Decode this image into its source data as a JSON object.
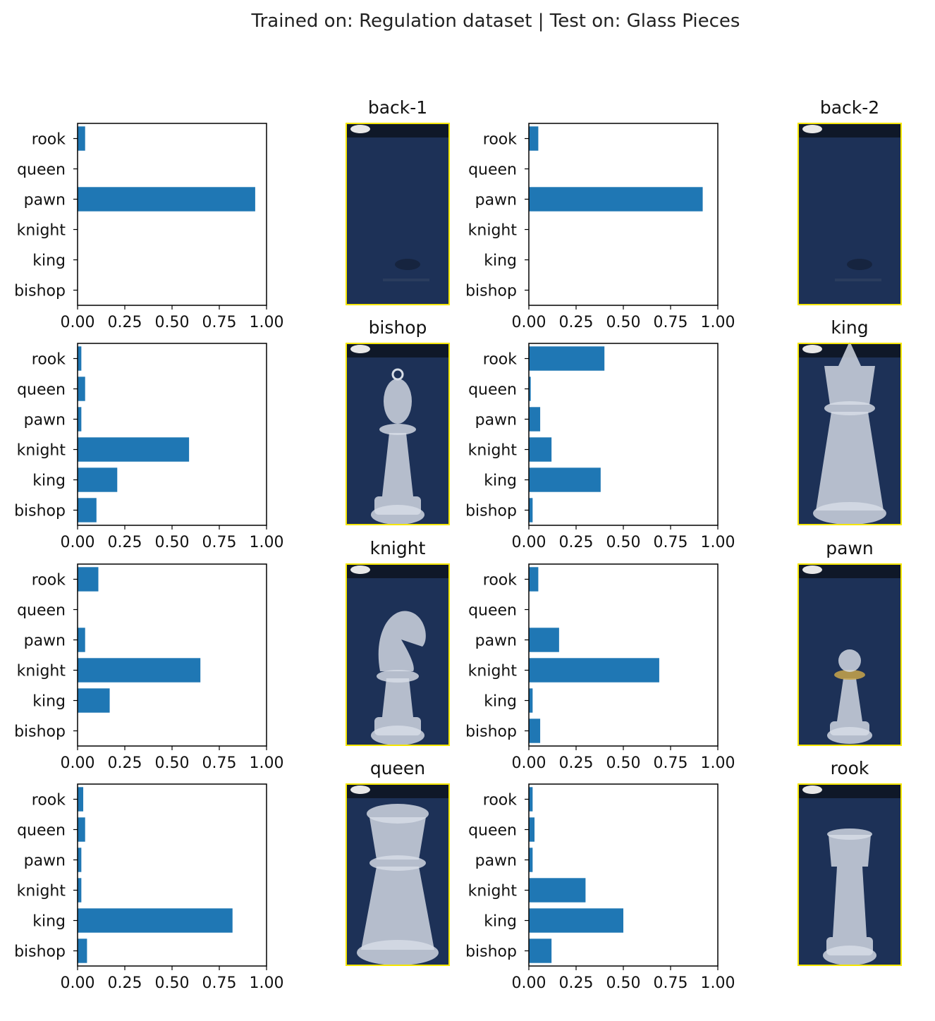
{
  "title": "Trained on: Regulation dataset |  Test on: Glass Pieces",
  "colors": {
    "bar": "#1f77b4",
    "axis": "#000000",
    "image_border": "#f5e600",
    "board_blue": "#1d3157",
    "glass": "#d7dde6"
  },
  "chart_data": [
    {
      "type": "bar",
      "orientation": "horizontal",
      "categories": [
        "rook",
        "queen",
        "pawn",
        "knight",
        "king",
        "bishop"
      ],
      "values": [
        0.04,
        0.0,
        0.94,
        0.0,
        0.0,
        0.0
      ],
      "xlim": [
        0,
        1
      ],
      "xticks": [
        "0.00",
        "0.25",
        "0.50",
        "0.75",
        "1.00"
      ],
      "image_title": "back-1",
      "image_icon": "empty-board"
    },
    {
      "type": "bar",
      "orientation": "horizontal",
      "categories": [
        "rook",
        "queen",
        "pawn",
        "knight",
        "king",
        "bishop"
      ],
      "values": [
        0.05,
        0.0,
        0.92,
        0.0,
        0.0,
        0.0
      ],
      "xlim": [
        0,
        1
      ],
      "xticks": [
        "0.00",
        "0.25",
        "0.50",
        "0.75",
        "1.00"
      ],
      "image_title": "back-2",
      "image_icon": "empty-board"
    },
    {
      "type": "bar",
      "orientation": "horizontal",
      "categories": [
        "rook",
        "queen",
        "pawn",
        "knight",
        "king",
        "bishop"
      ],
      "values": [
        0.02,
        0.04,
        0.02,
        0.59,
        0.21,
        0.1
      ],
      "xlim": [
        0,
        1
      ],
      "xticks": [
        "0.00",
        "0.25",
        "0.50",
        "0.75",
        "1.00"
      ],
      "image_title": "bishop",
      "image_icon": "glass-bishop"
    },
    {
      "type": "bar",
      "orientation": "horizontal",
      "categories": [
        "rook",
        "queen",
        "pawn",
        "knight",
        "king",
        "bishop"
      ],
      "values": [
        0.4,
        0.01,
        0.06,
        0.12,
        0.38,
        0.02
      ],
      "xlim": [
        0,
        1
      ],
      "xticks": [
        "0.00",
        "0.25",
        "0.50",
        "0.75",
        "1.00"
      ],
      "image_title": "king",
      "image_icon": "glass-king"
    },
    {
      "type": "bar",
      "orientation": "horizontal",
      "categories": [
        "rook",
        "queen",
        "pawn",
        "knight",
        "king",
        "bishop"
      ],
      "values": [
        0.11,
        0.0,
        0.04,
        0.65,
        0.17,
        0.0
      ],
      "xlim": [
        0,
        1
      ],
      "xticks": [
        "0.00",
        "0.25",
        "0.50",
        "0.75",
        "1.00"
      ],
      "image_title": "knight",
      "image_icon": "glass-knight"
    },
    {
      "type": "bar",
      "orientation": "horizontal",
      "categories": [
        "rook",
        "queen",
        "pawn",
        "knight",
        "king",
        "bishop"
      ],
      "values": [
        0.05,
        0.0,
        0.16,
        0.69,
        0.02,
        0.06
      ],
      "xlim": [
        0,
        1
      ],
      "xticks": [
        "0.00",
        "0.25",
        "0.50",
        "0.75",
        "1.00"
      ],
      "image_title": "pawn",
      "image_icon": "glass-pawn"
    },
    {
      "type": "bar",
      "orientation": "horizontal",
      "categories": [
        "rook",
        "queen",
        "pawn",
        "knight",
        "king",
        "bishop"
      ],
      "values": [
        0.03,
        0.04,
        0.02,
        0.02,
        0.82,
        0.05
      ],
      "xlim": [
        0,
        1
      ],
      "xticks": [
        "0.00",
        "0.25",
        "0.50",
        "0.75",
        "1.00"
      ],
      "image_title": "queen",
      "image_icon": "glass-queen"
    },
    {
      "type": "bar",
      "orientation": "horizontal",
      "categories": [
        "rook",
        "queen",
        "pawn",
        "knight",
        "king",
        "bishop"
      ],
      "values": [
        0.02,
        0.03,
        0.02,
        0.3,
        0.5,
        0.12
      ],
      "xlim": [
        0,
        1
      ],
      "xticks": [
        "0.00",
        "0.25",
        "0.50",
        "0.75",
        "1.00"
      ],
      "image_title": "rook",
      "image_icon": "glass-rook"
    }
  ]
}
